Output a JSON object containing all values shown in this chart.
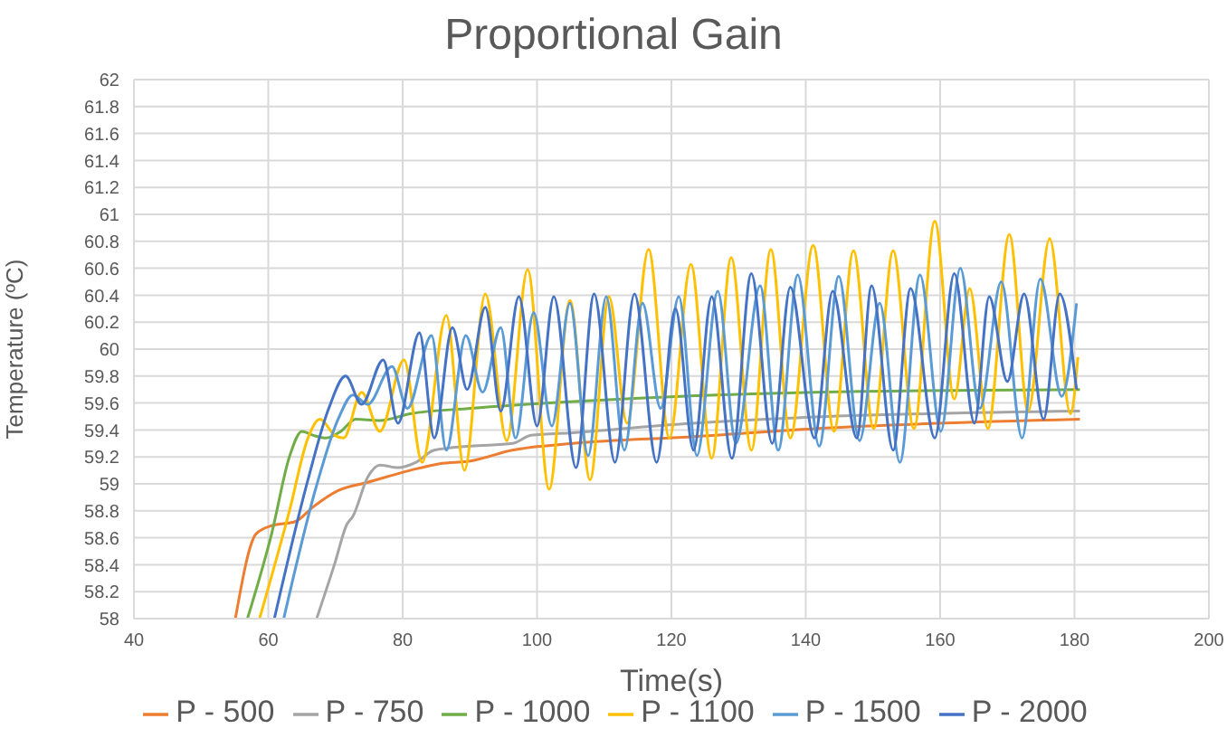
{
  "chart_data": {
    "type": "line",
    "title": "Proportional Gain",
    "xlabel": "Time(s)",
    "ylabel": "Temperature (ºC)",
    "xlim": [
      40,
      200
    ],
    "xticks": [
      40,
      60,
      80,
      100,
      120,
      140,
      160,
      180,
      200
    ],
    "ylim": [
      58,
      62
    ],
    "yticks": [
      58,
      58.2,
      58.4,
      58.6,
      58.8,
      59,
      59.2,
      59.4,
      59.6,
      59.8,
      60,
      60.2,
      60.4,
      60.6,
      60.8,
      61,
      61.2,
      61.4,
      61.6,
      61.8,
      62
    ],
    "grid": true,
    "legend": "bottom",
    "marker": "none",
    "line_style": "solid",
    "series": [
      {
        "name": "P - 500",
        "color": "#ed7d31",
        "x": [
          55.1,
          58.2,
          60.5,
          64.0,
          66.7,
          70.4,
          74.7,
          81.1,
          85.5,
          90.1,
          96.3,
          105.4,
          123.2,
          141.3,
          180.8
        ],
        "values": [
          58,
          58.63,
          58.69,
          58.72,
          58.83,
          58.95,
          59.01,
          59.1,
          59.15,
          59.17,
          59.25,
          59.3,
          59.35,
          59.41,
          59.48
        ]
      },
      {
        "name": "P - 750",
        "color": "#a5a5a5",
        "x": [
          67.2,
          69.9,
          71.7,
          72.6,
          74.8,
          76.6,
          79.3,
          82.0,
          84.7,
          90.1,
          96.4,
          99.1,
          105.4,
          123.3,
          138.6,
          180.8
        ],
        "values": [
          58,
          58.41,
          58.7,
          58.76,
          59.05,
          59.14,
          59.12,
          59.16,
          59.25,
          59.28,
          59.3,
          59.36,
          59.38,
          59.45,
          59.49,
          59.54
        ]
      },
      {
        "name": "P - 1000",
        "color": "#70ad47",
        "x": [
          56.9,
          60.5,
          63.2,
          65.0,
          66.7,
          68.6,
          70.8,
          73.0,
          76.6,
          81.1,
          90.1,
          105.4,
          141.3,
          180.8
        ],
        "values": [
          58,
          58.63,
          59.21,
          59.39,
          59.36,
          59.34,
          59.39,
          59.48,
          59.47,
          59.52,
          59.56,
          59.61,
          59.68,
          59.7
        ]
      },
      {
        "name": "P - 1100",
        "color": "#ffc000",
        "x": [
          58.7,
          63.2,
          65.9,
          67.7,
          69.9,
          71.2,
          73.9,
          76.6,
          80.2,
          82.9,
          86.5,
          89.2,
          92.3,
          95.5,
          98.6,
          101.8,
          104.9,
          107.9,
          110.7,
          113.4,
          116.6,
          119.7,
          122.9,
          126.0,
          128.9,
          131.9,
          134.8,
          137.7,
          141.1,
          144.2,
          147.1,
          150.1,
          153.0,
          156.1,
          159.2,
          162.1,
          164.4,
          167.1,
          170.3,
          173.1,
          176.3,
          179.4,
          180.5
        ],
        "values": [
          58,
          58.81,
          59.34,
          59.48,
          59.36,
          59.34,
          59.68,
          59.39,
          59.92,
          59.16,
          60.25,
          59.1,
          60.41,
          59.32,
          60.59,
          58.96,
          60.36,
          59.03,
          60.39,
          59.45,
          60.74,
          59.34,
          60.63,
          59.19,
          60.68,
          59.25,
          60.74,
          59.34,
          60.77,
          59.39,
          60.73,
          59.41,
          60.73,
          59.41,
          60.95,
          59.63,
          60.45,
          59.41,
          60.85,
          59.54,
          60.82,
          59.52,
          59.94
        ]
      },
      {
        "name": "P - 1500",
        "color": "#5b9bd5",
        "x": [
          62.3,
          67.2,
          70.4,
          72.6,
          74.8,
          78.4,
          80.7,
          84.3,
          86.5,
          89.4,
          91.9,
          94.6,
          96.8,
          99.5,
          102.2,
          104.9,
          107.6,
          110.3,
          113.0,
          115.7,
          118.4,
          121.1,
          123.8,
          126.9,
          129.6,
          133.2,
          135.9,
          138.8,
          142.0,
          144.9,
          148.0,
          151.0,
          154.0,
          157.0,
          160.1,
          163.0,
          165.9,
          169.1,
          172.2,
          174.9,
          178.1,
          180.3
        ],
        "values": [
          58,
          58.99,
          59.48,
          59.66,
          59.59,
          59.87,
          59.56,
          60.1,
          59.25,
          60.1,
          59.68,
          60.16,
          59.34,
          60.27,
          59.43,
          60.34,
          59.21,
          60.39,
          59.25,
          60.34,
          59.56,
          60.39,
          59.21,
          60.43,
          59.3,
          60.47,
          59.25,
          60.55,
          59.28,
          60.54,
          59.32,
          60.34,
          59.16,
          60.55,
          59.39,
          60.6,
          59.56,
          60.5,
          59.34,
          60.52,
          59.65,
          60.34
        ]
      },
      {
        "name": "P - 2000",
        "color": "#4472c4",
        "x": [
          60.9,
          65.9,
          69.0,
          71.5,
          73.9,
          77.1,
          79.3,
          82.5,
          84.7,
          87.4,
          89.6,
          92.3,
          94.6,
          97.3,
          100.0,
          102.5,
          105.8,
          108.5,
          111.6,
          114.5,
          117.8,
          120.6,
          123.3,
          126.0,
          129.0,
          131.9,
          135.0,
          137.7,
          141.3,
          144.0,
          147.6,
          149.8,
          153.0,
          155.6,
          159.2,
          162.1,
          165.1,
          167.3,
          170.0,
          172.5,
          175.4,
          177.8,
          180.3
        ],
        "values": [
          58,
          59.03,
          59.56,
          59.8,
          59.59,
          59.92,
          59.45,
          60.12,
          59.34,
          60.16,
          59.7,
          60.31,
          59.54,
          60.39,
          59.43,
          60.39,
          59.12,
          60.41,
          59.16,
          60.41,
          59.16,
          60.3,
          59.25,
          60.39,
          59.19,
          60.56,
          59.3,
          60.46,
          59.34,
          60.43,
          59.34,
          60.47,
          59.25,
          60.45,
          59.34,
          60.56,
          59.45,
          60.39,
          59.76,
          60.41,
          59.48,
          60.41,
          59.7
        ]
      }
    ]
  }
}
